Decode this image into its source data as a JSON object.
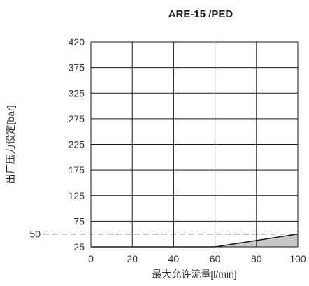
{
  "chart_data": {
    "type": "area",
    "title": "ARE-15 /PED",
    "xlabel": "最大允许流量[l/min]",
    "ylabel": "出厂压力设定[bar]",
    "xlim": [
      0,
      100
    ],
    "ylim": [
      25,
      420
    ],
    "x_ticks": [
      "0",
      "20",
      "40",
      "60",
      "80",
      "100"
    ],
    "x_tick_values": [
      0,
      20,
      40,
      60,
      80,
      100
    ],
    "y_ticks": [
      "420",
      "375",
      "325",
      "275",
      "225",
      "175",
      "125",
      "75",
      "25"
    ],
    "y_tick_values": [
      420,
      375,
      325,
      275,
      225,
      175,
      125,
      75,
      25
    ],
    "y_reference": {
      "value": 50,
      "label": "50",
      "style": "dashed"
    },
    "series": [
      {
        "x": [
          0,
          60,
          100
        ],
        "y": [
          25,
          25,
          50
        ],
        "fill_between": {
          "x": [
            60,
            100
          ],
          "lower": [
            25,
            25
          ],
          "upper": [
            25,
            50
          ]
        }
      }
    ],
    "grid": true,
    "colors": {
      "fill": "#c8c8c8",
      "grid": "#1a1a1a",
      "text": "#333333"
    }
  }
}
